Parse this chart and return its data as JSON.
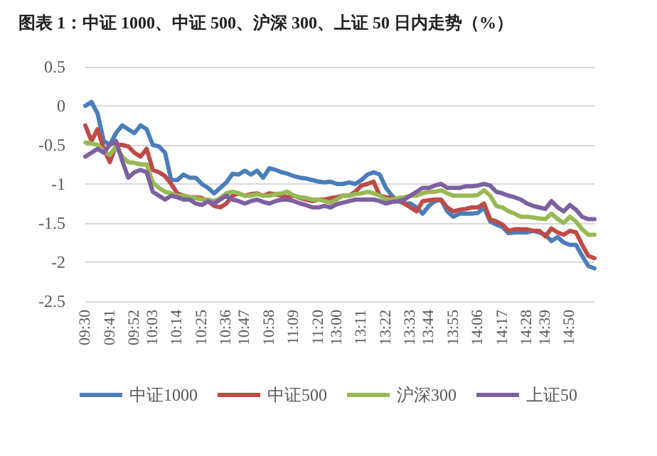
{
  "chart_data": {
    "type": "line",
    "title": "图表 1：中证 1000、中证 500、沪深 300、上证 50 日内走势（%）",
    "categories": [
      "09:30",
      null,
      null,
      null,
      "09:41",
      null,
      null,
      null,
      "09:52",
      null,
      null,
      "10:03",
      null,
      null,
      null,
      "10:14",
      null,
      null,
      null,
      "10:25",
      null,
      null,
      null,
      "10:36",
      null,
      null,
      "10:47",
      null,
      null,
      null,
      "10:58",
      null,
      null,
      null,
      "11:09",
      null,
      null,
      null,
      "11:20",
      null,
      null,
      "13:00",
      null,
      null,
      null,
      "13:11",
      null,
      null,
      null,
      "13:22",
      null,
      null,
      null,
      "13:33",
      null,
      null,
      "13:44",
      null,
      null,
      null,
      "13:55",
      null,
      null,
      null,
      "14:06",
      null,
      null,
      null,
      "14:17",
      null,
      null,
      null,
      "14:28",
      null,
      null,
      "14:39",
      null,
      null,
      null,
      "14:50",
      null,
      null,
      null,
      null
    ],
    "series": [
      {
        "name": "中证1000",
        "color": "#4a7ebb",
        "values": [
          0,
          0.05,
          -0.1,
          -0.45,
          -0.5,
          -0.35,
          -0.25,
          -0.3,
          -0.35,
          -0.25,
          -0.3,
          -0.5,
          -0.52,
          -0.6,
          -0.95,
          -0.95,
          -0.88,
          -0.92,
          -0.92,
          -1.0,
          -1.05,
          -1.12,
          -1.05,
          -0.98,
          -0.87,
          -0.88,
          -0.83,
          -0.88,
          -0.83,
          -0.92,
          -0.8,
          -0.82,
          -0.85,
          -0.87,
          -0.9,
          -0.92,
          -0.93,
          -0.95,
          -0.97,
          -0.98,
          -0.97,
          -1.0,
          -1.0,
          -0.98,
          -1.0,
          -0.95,
          -0.88,
          -0.85,
          -0.88,
          -1.05,
          -1.15,
          -1.22,
          -1.25,
          -1.25,
          -1.3,
          -1.38,
          -1.28,
          -1.22,
          -1.2,
          -1.35,
          -1.42,
          -1.38,
          -1.38,
          -1.38,
          -1.37,
          -1.3,
          -1.48,
          -1.52,
          -1.55,
          -1.63,
          -1.62,
          -1.62,
          -1.62,
          -1.6,
          -1.62,
          -1.65,
          -1.73,
          -1.68,
          -1.75,
          -1.78,
          -1.78,
          -1.92,
          -2.05,
          -2.08
        ]
      },
      {
        "name": "中证500",
        "color": "#be4b48",
        "values": [
          -0.25,
          -0.45,
          -0.3,
          -0.55,
          -0.72,
          -0.5,
          -0.5,
          -0.52,
          -0.6,
          -0.65,
          -0.55,
          -0.82,
          -0.85,
          -0.9,
          -1.0,
          -1.12,
          -1.15,
          -1.17,
          -1.17,
          -1.18,
          -1.22,
          -1.28,
          -1.3,
          -1.25,
          -1.15,
          -1.12,
          -1.15,
          -1.13,
          -1.12,
          -1.15,
          -1.12,
          -1.13,
          -1.15,
          -1.17,
          -1.15,
          -1.18,
          -1.2,
          -1.22,
          -1.2,
          -1.2,
          -1.18,
          -1.17,
          -1.15,
          -1.15,
          -1.1,
          -1.02,
          -1.0,
          -0.97,
          -1.15,
          -1.17,
          -1.18,
          -1.2,
          -1.25,
          -1.3,
          -1.35,
          -1.22,
          -1.21,
          -1.2,
          -1.2,
          -1.3,
          -1.35,
          -1.33,
          -1.32,
          -1.3,
          -1.3,
          -1.25,
          -1.45,
          -1.48,
          -1.52,
          -1.6,
          -1.58,
          -1.58,
          -1.58,
          -1.6,
          -1.6,
          -1.67,
          -1.57,
          -1.62,
          -1.65,
          -1.6,
          -1.62,
          -1.78,
          -1.92,
          -1.95
        ]
      },
      {
        "name": "沪深300",
        "color": "#98b954",
        "values": [
          -0.47,
          -0.48,
          -0.5,
          -0.58,
          -0.63,
          -0.52,
          -0.65,
          -0.72,
          -0.73,
          -0.75,
          -0.75,
          -0.98,
          -1.05,
          -1.1,
          -1.12,
          -1.15,
          -1.15,
          -1.17,
          -1.18,
          -1.2,
          -1.2,
          -1.22,
          -1.18,
          -1.12,
          -1.1,
          -1.12,
          -1.15,
          -1.15,
          -1.13,
          -1.15,
          -1.15,
          -1.13,
          -1.12,
          -1.1,
          -1.15,
          -1.17,
          -1.18,
          -1.2,
          -1.2,
          -1.22,
          -1.24,
          -1.2,
          -1.15,
          -1.15,
          -1.13,
          -1.12,
          -1.1,
          -1.12,
          -1.15,
          -1.2,
          -1.2,
          -1.18,
          -1.17,
          -1.15,
          -1.15,
          -1.12,
          -1.1,
          -1.1,
          -1.08,
          -1.12,
          -1.15,
          -1.15,
          -1.15,
          -1.15,
          -1.14,
          -1.08,
          -1.15,
          -1.28,
          -1.3,
          -1.35,
          -1.38,
          -1.42,
          -1.42,
          -1.43,
          -1.44,
          -1.45,
          -1.38,
          -1.45,
          -1.5,
          -1.42,
          -1.48,
          -1.58,
          -1.65,
          -1.65
        ]
      },
      {
        "name": "上证50",
        "color": "#7d60a0",
        "values": [
          -0.65,
          -0.6,
          -0.55,
          -0.6,
          -0.5,
          -0.45,
          -0.7,
          -0.92,
          -0.85,
          -0.82,
          -0.85,
          -1.1,
          -1.15,
          -1.2,
          -1.15,
          -1.17,
          -1.2,
          -1.2,
          -1.25,
          -1.27,
          -1.22,
          -1.25,
          -1.2,
          -1.15,
          -1.2,
          -1.22,
          -1.25,
          -1.22,
          -1.2,
          -1.23,
          -1.25,
          -1.22,
          -1.2,
          -1.2,
          -1.22,
          -1.25,
          -1.27,
          -1.3,
          -1.3,
          -1.28,
          -1.3,
          -1.26,
          -1.24,
          -1.22,
          -1.2,
          -1.2,
          -1.2,
          -1.2,
          -1.22,
          -1.25,
          -1.23,
          -1.22,
          -1.2,
          -1.15,
          -1.1,
          -1.05,
          -1.05,
          -1.02,
          -1.0,
          -1.05,
          -1.05,
          -1.05,
          -1.03,
          -1.03,
          -1.02,
          -1.0,
          -1.02,
          -1.1,
          -1.12,
          -1.15,
          -1.17,
          -1.2,
          -1.25,
          -1.28,
          -1.3,
          -1.32,
          -1.22,
          -1.3,
          -1.35,
          -1.27,
          -1.33,
          -1.42,
          -1.45,
          -1.45
        ]
      }
    ],
    "ylim": [
      -2.5,
      0.5
    ],
    "yticks": [
      -2.5,
      -2,
      -1.5,
      -1,
      -0.5,
      0,
      0.5
    ],
    "grid": "y",
    "legend": "bottom",
    "marker": "none",
    "line_style": "solid"
  }
}
